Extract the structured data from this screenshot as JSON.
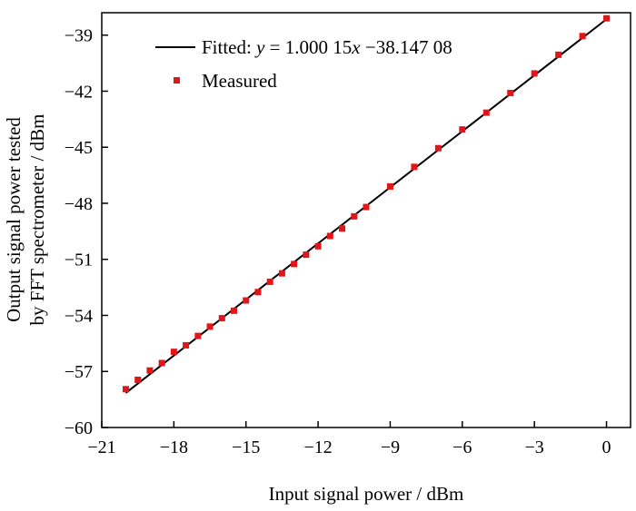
{
  "chart_data": {
    "type": "scatter",
    "title": "",
    "xlabel": "Input signal power / dBm",
    "ylabel_lines": [
      "Output signal power tested",
      "by FFT spectrometer / dBm"
    ],
    "xlim": [
      -21,
      1
    ],
    "ylim": [
      -60,
      -37.8
    ],
    "xticks": [
      -21,
      -18,
      -15,
      -12,
      -9,
      -6,
      -3,
      0
    ],
    "yticks": [
      -60,
      -57,
      -54,
      -51,
      -48,
      -45,
      -42,
      -39
    ],
    "xtick_labels": [
      "−21",
      "−18",
      "−15",
      "−12",
      "−9",
      "−6",
      "−3",
      "0"
    ],
    "ytick_labels": [
      "−60",
      "−57",
      "−54",
      "−51",
      "−48",
      "−45",
      "−42",
      "−39"
    ],
    "legend_position": "top-left",
    "fit": {
      "name": "Fitted",
      "slope": 1.00015,
      "intercept": -38.14708,
      "x_range": [
        -20,
        0
      ],
      "label_prefix": "Fitted: ",
      "equation": {
        "y": "y",
        "eq": " = ",
        "slope": "1.000 15",
        "x": "x",
        "op": " −",
        "intercept": "38.147 08"
      }
    },
    "series": [
      {
        "name": "Measured",
        "x": [
          -20,
          -19.5,
          -19,
          -18.5,
          -18,
          -17.5,
          -17,
          -16.5,
          -16,
          -15.5,
          -15,
          -14.5,
          -14,
          -13.5,
          -13,
          -12.5,
          -12,
          -11.5,
          -11,
          -10.5,
          -10,
          -9,
          -8,
          -7,
          -6,
          -5,
          -4,
          -3,
          -2,
          -1,
          0
        ],
        "y": [
          -57.95,
          -57.45,
          -56.95,
          -56.55,
          -55.95,
          -55.6,
          -55.1,
          -54.6,
          -54.15,
          -53.75,
          -53.2,
          -52.75,
          -52.2,
          -51.75,
          -51.25,
          -50.75,
          -50.3,
          -49.75,
          -49.35,
          -48.7,
          -48.2,
          -47.1,
          -46.05,
          -45.05,
          -44.05,
          -43.15,
          -42.1,
          -41.05,
          -40.05,
          -39.05,
          -38.1
        ]
      }
    ]
  }
}
